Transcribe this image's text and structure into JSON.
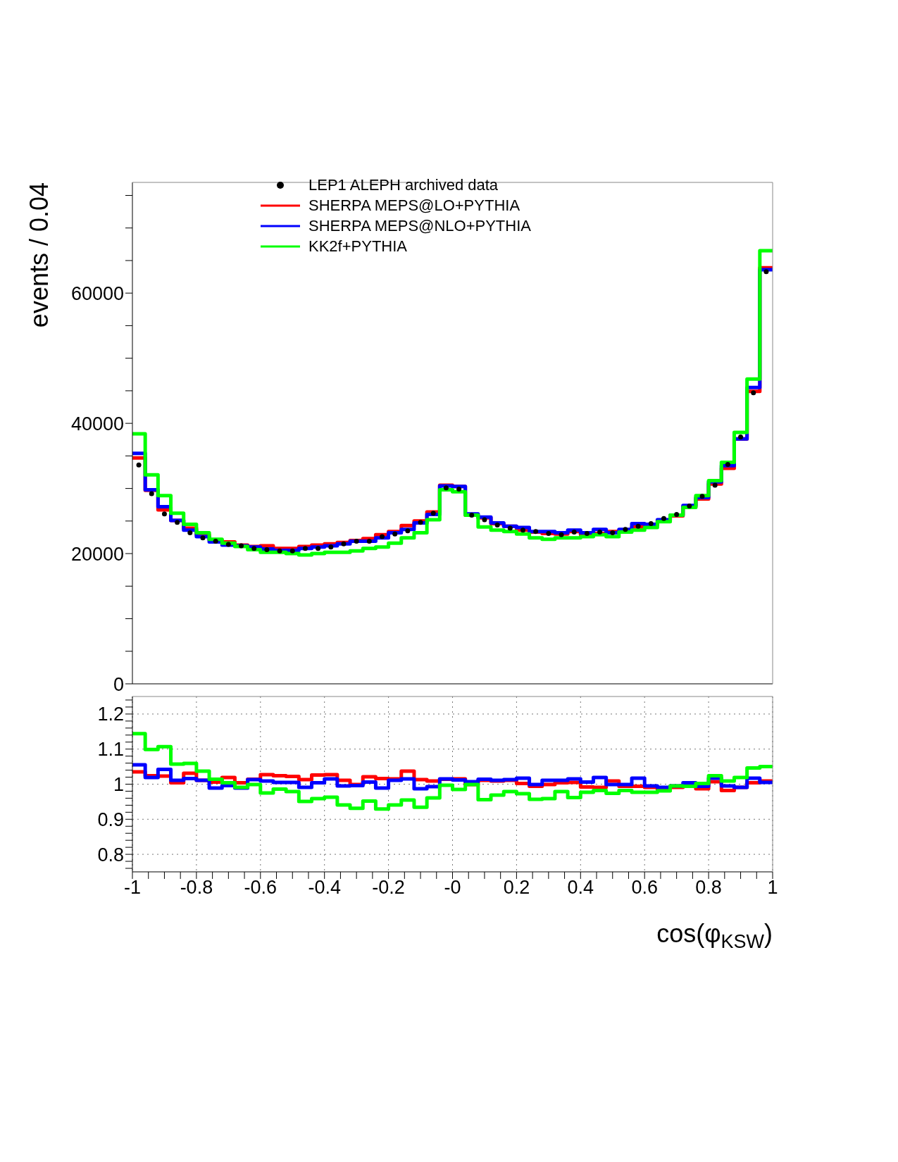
{
  "chart_data": [
    {
      "type": "histogram",
      "ylabel": "events / 0.04",
      "legend": "top",
      "tick_labels": "y",
      "xlim": [
        -1,
        1
      ],
      "ylim": [
        0,
        77000
      ],
      "yticks": [
        0,
        {
          "value": 5000,
          "label": null
        },
        {
          "value": 10000,
          "label": null
        },
        {
          "value": 15000,
          "label": null
        },
        20000,
        {
          "value": 25000,
          "label": null
        },
        {
          "value": 30000,
          "label": null
        },
        {
          "value": 35000,
          "label": null
        },
        40000,
        {
          "value": 45000,
          "label": null
        },
        {
          "value": 50000,
          "label": null
        },
        {
          "value": 55000,
          "label": null
        },
        60000,
        {
          "value": 65000,
          "label": null
        },
        {
          "value": 70000,
          "label": null
        },
        {
          "value": 75000,
          "label": null
        }
      ],
      "bins": [
        -1,
        -0.96,
        -0.92,
        -0.88,
        -0.84,
        -0.8,
        -0.76,
        -0.72,
        -0.68,
        -0.64,
        -0.6,
        -0.56,
        -0.52,
        -0.48,
        -0.44,
        -0.4,
        -0.36,
        -0.32,
        -0.28,
        -0.24,
        -0.2,
        -0.16,
        -0.12,
        -0.08,
        -0.04,
        0,
        0.04,
        0.08,
        0.12,
        0.16,
        0.2,
        0.24,
        0.28,
        0.32,
        0.36,
        0.4,
        0.44,
        0.48,
        0.52,
        0.56,
        0.6,
        0.64,
        0.68,
        0.72,
        0.76,
        0.8,
        0.84,
        0.88,
        0.92,
        0.96,
        1
      ],
      "series": [
        {
          "name": "LEP1 ALEPH archived data",
          "type": "scatter",
          "marker": "circle",
          "color": "#000000",
          "x": [
            -0.98,
            -0.94,
            -0.9,
            -0.86,
            -0.82,
            -0.78,
            -0.74,
            -0.7,
            -0.66,
            -0.62,
            -0.58,
            -0.54,
            -0.5,
            -0.46,
            -0.42,
            -0.38,
            -0.34,
            -0.3,
            -0.26,
            -0.22,
            -0.18,
            -0.14,
            -0.1,
            -0.06,
            -0.02,
            0.02,
            0.06,
            0.1,
            0.14,
            0.18,
            0.22,
            0.26,
            0.3,
            0.34,
            0.38,
            0.42,
            0.46,
            0.5,
            0.54,
            0.58,
            0.62,
            0.66,
            0.7,
            0.74,
            0.78,
            0.82,
            0.86,
            0.9,
            0.94,
            0.98
          ],
          "values": [
            33600,
            29200,
            26100,
            24800,
            23200,
            22400,
            21900,
            21400,
            21200,
            20800,
            20600,
            20400,
            20400,
            20800,
            20800,
            21000,
            21500,
            21900,
            21900,
            22600,
            23000,
            23500,
            24800,
            26200,
            30100,
            29900,
            25900,
            25200,
            24400,
            23900,
            23600,
            23400,
            23100,
            22900,
            23300,
            23100,
            23300,
            23200,
            23700,
            24200,
            24600,
            25400,
            26000,
            27300,
            28800,
            30500,
            33700,
            37900,
            44700,
            63300
          ]
        },
        {
          "name": "SHERPA MEPS@LO+PYTHIA",
          "color": "#ff0000",
          "values": [
            34700,
            29700,
            26700,
            25100,
            23900,
            22900,
            22100,
            21800,
            21300,
            21100,
            21200,
            20800,
            20800,
            21100,
            21300,
            21500,
            21700,
            22000,
            22300,
            22900,
            23400,
            24300,
            25000,
            26400,
            30500,
            30300,
            25900,
            25500,
            24600,
            24200,
            23600,
            23300,
            23100,
            23000,
            23400,
            22900,
            23100,
            23400,
            23600,
            24100,
            24400,
            25000,
            25800,
            27200,
            28400,
            30700,
            33100,
            37600,
            44900,
            63900
          ]
        },
        {
          "name": "SHERPA MEPS@NLO+PYTHIA",
          "color": "#0000ff",
          "values": [
            35400,
            29800,
            27200,
            25100,
            23600,
            22600,
            21800,
            21300,
            21200,
            21000,
            20700,
            20500,
            20500,
            20800,
            21000,
            21200,
            21500,
            21900,
            21900,
            22400,
            23200,
            23700,
            24700,
            26000,
            30400,
            30300,
            26100,
            25600,
            24700,
            24200,
            24000,
            23400,
            23400,
            23200,
            23600,
            23200,
            23700,
            23200,
            23700,
            24600,
            24500,
            25200,
            25900,
            27400,
            28600,
            31000,
            33500,
            37600,
            45500,
            63600
          ]
        },
        {
          "name": "KK2f+PYTHIA",
          "color": "#00ff00",
          "values": [
            38400,
            32100,
            28900,
            26200,
            24500,
            23200,
            22200,
            21600,
            21100,
            20600,
            20200,
            20200,
            20000,
            19800,
            20000,
            20200,
            20200,
            20400,
            20800,
            21000,
            21600,
            22400,
            23200,
            25200,
            29800,
            29500,
            25900,
            24100,
            23600,
            23400,
            23000,
            22400,
            22200,
            22400,
            22400,
            22600,
            22900,
            22600,
            23300,
            23600,
            24000,
            24900,
            25900,
            27100,
            28900,
            31200,
            34000,
            38600,
            46800,
            66500
          ]
        }
      ]
    },
    {
      "type": "histogram",
      "xlabel": "cos(φ$_{KSW}$)",
      "grid": true,
      "xlim": [
        -1,
        1
      ],
      "ylim": [
        0.75,
        1.25
      ],
      "xticks": [
        -1,
        {
          "value": -0.95,
          "label": null
        },
        {
          "value": -0.9,
          "label": null
        },
        {
          "value": -0.85,
          "label": null
        },
        -0.8,
        {
          "value": -0.75,
          "label": null
        },
        {
          "value": -0.7,
          "label": null
        },
        {
          "value": -0.65,
          "label": null
        },
        -0.6,
        {
          "value": -0.55,
          "label": null
        },
        {
          "value": -0.5,
          "label": null
        },
        {
          "value": -0.45,
          "label": null
        },
        -0.4,
        {
          "value": -0.35,
          "label": null
        },
        {
          "value": -0.3,
          "label": null
        },
        {
          "value": -0.25,
          "label": null
        },
        -0.2,
        {
          "value": -0.15,
          "label": null
        },
        {
          "value": -0.1,
          "label": null
        },
        {
          "value": -0.05,
          "label": null
        },
        {
          "value": 0,
          "label": "-0"
        },
        {
          "value": 0.05,
          "label": null
        },
        {
          "value": 0.1,
          "label": null
        },
        {
          "value": 0.15,
          "label": null
        },
        0.2,
        {
          "value": 0.25,
          "label": null
        },
        {
          "value": 0.3,
          "label": null
        },
        {
          "value": 0.35,
          "label": null
        },
        0.4,
        {
          "value": 0.45,
          "label": null
        },
        {
          "value": 0.5,
          "label": null
        },
        {
          "value": 0.55,
          "label": null
        },
        0.6,
        {
          "value": 0.65,
          "label": null
        },
        {
          "value": 0.7,
          "label": null
        },
        {
          "value": 0.75,
          "label": null
        },
        0.8,
        {
          "value": 0.85,
          "label": null
        },
        {
          "value": 0.9,
          "label": null
        },
        {
          "value": 0.95,
          "label": null
        },
        1
      ],
      "yticks": [
        {
          "value": 0.76,
          "label": null
        },
        {
          "value": 0.78,
          "label": null
        },
        0.8,
        {
          "value": 0.82,
          "label": null
        },
        {
          "value": 0.84,
          "label": null
        },
        {
          "value": 0.86,
          "label": null
        },
        {
          "value": 0.88,
          "label": null
        },
        0.9,
        {
          "value": 0.92,
          "label": null
        },
        {
          "value": 0.94,
          "label": null
        },
        {
          "value": 0.96,
          "label": null
        },
        {
          "value": 0.98,
          "label": null
        },
        1,
        {
          "value": 1.02,
          "label": null
        },
        {
          "value": 1.04,
          "label": null
        },
        {
          "value": 1.06,
          "label": null
        },
        {
          "value": 1.08,
          "label": null
        },
        1.1,
        {
          "value": 1.12,
          "label": null
        },
        {
          "value": 1.14,
          "label": null
        },
        {
          "value": 1.16,
          "label": null
        },
        {
          "value": 1.18,
          "label": null
        },
        1.2,
        {
          "value": 1.22,
          "label": null
        },
        {
          "value": 1.24,
          "label": null
        }
      ],
      "bins": [
        -1,
        -0.96,
        -0.92,
        -0.88,
        -0.84,
        -0.8,
        -0.76,
        -0.72,
        -0.68,
        -0.64,
        -0.6,
        -0.56,
        -0.52,
        -0.48,
        -0.44,
        -0.4,
        -0.36,
        -0.32,
        -0.28,
        -0.24,
        -0.2,
        -0.16,
        -0.12,
        -0.08,
        -0.04,
        0,
        0.04,
        0.08,
        0.12,
        0.16,
        0.2,
        0.24,
        0.28,
        0.32,
        0.36,
        0.4,
        0.44,
        0.48,
        0.52,
        0.56,
        0.6,
        0.64,
        0.68,
        0.72,
        0.76,
        0.8,
        0.84,
        0.88,
        0.92,
        0.96,
        1
      ],
      "series": [
        {
          "color": "#ff0000",
          "values": [
            1.035,
            1.024,
            1.023,
            1.004,
            1.031,
            1.011,
            1.006,
            1.019,
            1.004,
            1.014,
            1.027,
            1.024,
            1.022,
            1.013,
            1.026,
            1.027,
            1.011,
            0.999,
            1.021,
            1.016,
            1.015,
            1.037,
            1.013,
            1.009,
            1.014,
            1.015,
            0.999,
            1.011,
            1.009,
            1.011,
            1.002,
            0.994,
            0.999,
            1.004,
            1.005,
            0.992,
            0.991,
            1.009,
            0.994,
            0.994,
            0.991,
            0.984,
            0.991,
            0.997,
            0.987,
            1.007,
            0.982,
            0.991,
            1.004,
            1.009
          ]
        },
        {
          "color": "#0000ff",
          "values": [
            1.055,
            1.019,
            1.042,
            1.011,
            1.016,
            1.011,
            0.989,
            0.996,
            0.989,
            1.013,
            1.009,
            1.005,
            1.005,
            0.991,
            1.004,
            1.015,
            0.995,
            0.996,
            1.006,
            0.989,
            1.011,
            1.015,
            0.987,
            0.993,
            1.015,
            1.012,
            1.007,
            1.014,
            1.011,
            1.013,
            1.017,
            0.999,
            1.011,
            1.011,
            1.015,
            1.006,
            1.019,
            0.999,
            0.999,
            1.017,
            0.995,
            0.991,
            0.995,
            1.004,
            0.994,
            1.017,
            0.995,
            0.991,
            1.017,
            1.005
          ]
        },
        {
          "color": "#00ff00",
          "values": [
            1.144,
            1.099,
            1.107,
            1.057,
            1.059,
            1.037,
            1.014,
            1.004,
            0.991,
            0.999,
            0.975,
            0.986,
            0.979,
            0.951,
            0.959,
            0.963,
            0.941,
            0.931,
            0.952,
            0.929,
            0.941,
            0.955,
            0.934,
            0.961,
            0.997,
            0.985,
            0.999,
            0.956,
            0.969,
            0.979,
            0.973,
            0.957,
            0.959,
            0.979,
            0.962,
            0.977,
            0.982,
            0.974,
            0.982,
            0.977,
            0.977,
            0.981,
            0.995,
            0.994,
            1.002,
            1.024,
            1.009,
            1.019,
            1.046,
            1.05
          ]
        }
      ]
    }
  ]
}
